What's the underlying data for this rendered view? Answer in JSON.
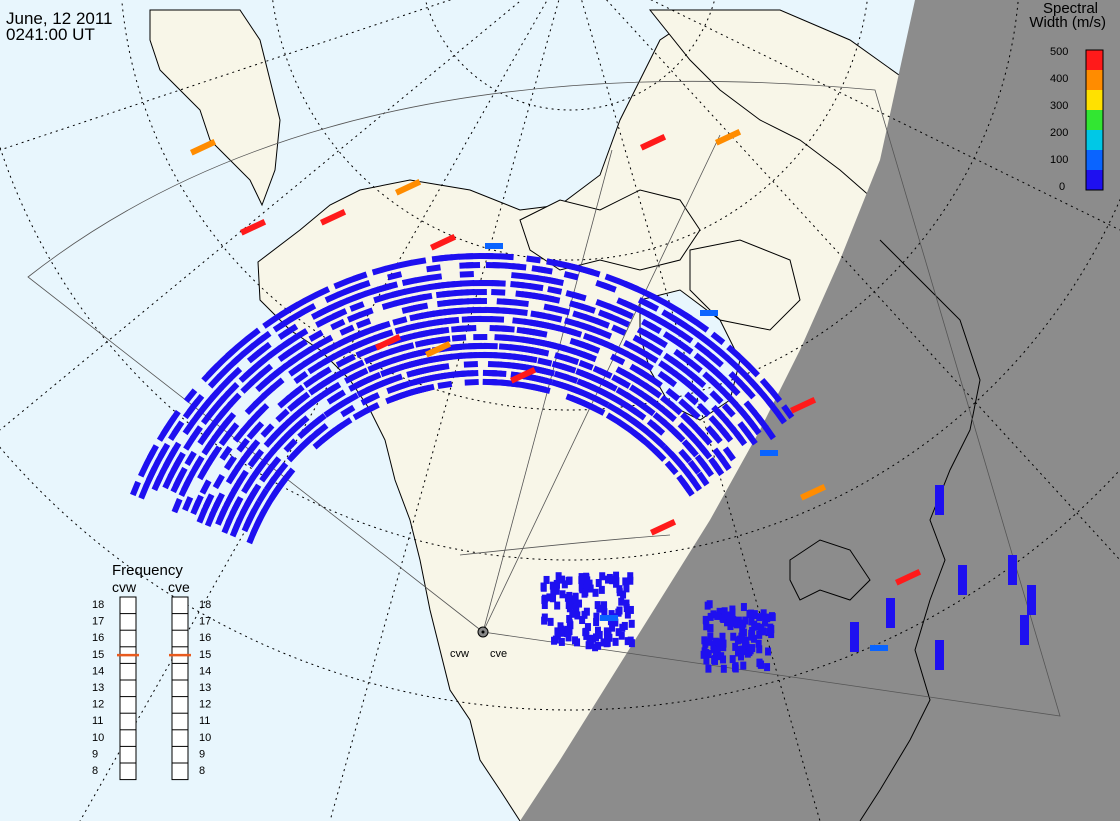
{
  "header": {
    "date": "June, 12 2011",
    "time": "0241:00 UT"
  },
  "colorbar": {
    "title_line1": "Spectral",
    "title_line2": "Width (m/s)",
    "ticks": [
      "500",
      "400",
      "300",
      "200",
      "100",
      "0"
    ],
    "colors": [
      "#ff1a1a",
      "#ff8c00",
      "#ffe100",
      "#32e632",
      "#00c8e6",
      "#0a64ff",
      "#1e10f0"
    ]
  },
  "frequency_panel": {
    "title": "Frequency",
    "radars": [
      {
        "name": "cvw",
        "selected_mhz": 15
      },
      {
        "name": "cve",
        "selected_mhz": 15
      }
    ],
    "scale": [
      "18",
      "17",
      "16",
      "15",
      "14",
      "13",
      "12",
      "11",
      "10",
      "9",
      "8"
    ],
    "indicator_color": "#e85a1e"
  },
  "radar_labels": {
    "west": "cvw",
    "east": "cve"
  },
  "colors": {
    "ocean": "#e8f6fd",
    "land": "#f8f6e8",
    "night": "#8c8c8c",
    "echo_low": "#1e10f0"
  }
}
